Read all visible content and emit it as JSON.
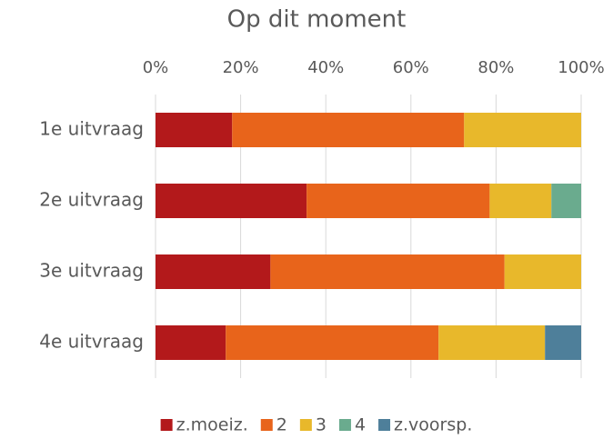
{
  "chart_data": {
    "type": "stacked-bar-horizontal",
    "title": "Op dit moment",
    "categories": [
      "1e uitvraag",
      "2e uitvraag",
      "3e uitvraag",
      "4e uitvraag"
    ],
    "series": [
      {
        "name": "z.moeiz.",
        "color": "#b3191b",
        "values": [
          18,
          35.5,
          27,
          16.5
        ]
      },
      {
        "name": "2",
        "color": "#e8641b",
        "values": [
          54.5,
          43,
          55,
          50
        ]
      },
      {
        "name": "3",
        "color": "#e8b82b",
        "values": [
          27.5,
          14.5,
          18,
          25
        ]
      },
      {
        "name": "4",
        "color": "#6aab8e",
        "values": [
          0,
          7,
          0,
          0
        ]
      },
      {
        "name": "z.voorsp.",
        "color": "#4e7f9a",
        "values": [
          0,
          0,
          0,
          8.5
        ]
      }
    ],
    "xlim": [
      0,
      100
    ],
    "xticks": [
      {
        "value": 0,
        "label": "0%"
      },
      {
        "value": 20,
        "label": "20%"
      },
      {
        "value": 40,
        "label": "40%"
      },
      {
        "value": 60,
        "label": "60%"
      },
      {
        "value": 80,
        "label": "80%"
      },
      {
        "value": 100,
        "label": "100%"
      }
    ],
    "grid": true,
    "legend": "bottom"
  }
}
